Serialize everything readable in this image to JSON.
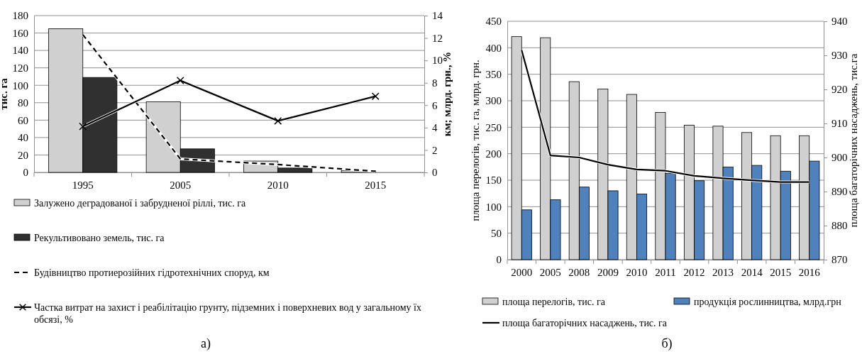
{
  "chart_data": [
    {
      "type": "bar",
      "categories": [
        "1995",
        "2005",
        "2010",
        "2015"
      ],
      "ylabel": "тис. га",
      "y2label": "км; млрд. грн., %",
      "ylim": [
        0,
        180
      ],
      "yticks": [
        0,
        20,
        40,
        60,
        80,
        100,
        120,
        140,
        160,
        180
      ],
      "y2lim": [
        0,
        14
      ],
      "y2ticks": [
        0,
        2,
        4,
        6,
        8,
        10,
        12,
        14
      ],
      "grid": "y",
      "legend": "bottom",
      "annotations": [
        "а)"
      ],
      "series": [
        {
          "name": "Залужено деградованої і забрудненої ріллі, тис. га",
          "color": "#d0d0d0",
          "values": [
            165,
            81,
            13,
            2
          ]
        },
        {
          "name": "Рекультивовано земель, тис. га",
          "color": "#303030",
          "values": [
            109,
            27,
            5,
            null
          ]
        },
        {
          "name": "Будівництво протиерозійних гідротехнічних споруд, км",
          "type": "line",
          "axis": "y2",
          "color": "#000000",
          "line_style": "dashed",
          "marker": "none",
          "values": [
            12.3,
            1.2,
            0.7,
            0.1
          ]
        },
        {
          "name": "Частка витрат на захист і реабілітацію грунту, підземних і поверхневих вод у загальному їх обсязі, %",
          "type": "line",
          "axis": "y2",
          "color": "#000000",
          "line_style": "solid",
          "marker": "cross",
          "values": [
            4.1,
            8.2,
            4.6,
            6.8
          ]
        }
      ]
    },
    {
      "type": "bar",
      "categories": [
        "2000",
        "2005",
        "2008",
        "2009",
        "2010",
        "2011",
        "2012",
        "2013",
        "2014",
        "2015",
        "2016"
      ],
      "ylabel": "площа перелогів, тис. га, млрд. грн.",
      "y2label": "площа багаторічних насаджень, тис.га",
      "ylim": [
        0,
        450
      ],
      "yticks": [
        0,
        50,
        100,
        150,
        200,
        250,
        300,
        350,
        400,
        450
      ],
      "y2lim": [
        870,
        940
      ],
      "y2ticks": [
        870,
        880,
        890,
        900,
        910,
        920,
        930,
        940
      ],
      "grid": "y",
      "legend": "bottom",
      "annotations": [
        "б)"
      ],
      "series": [
        {
          "name": "площа перелогів, тис. га",
          "color": "#d0d0d0",
          "values": [
            421,
            419,
            336,
            322,
            312,
            278,
            254,
            252,
            240,
            234,
            234
          ]
        },
        {
          "name": "продукція рослинництва, млрд.грн",
          "color": "#4f81bd",
          "values": [
            94,
            113,
            137,
            130,
            124,
            163,
            149,
            175,
            178,
            167,
            186
          ]
        },
        {
          "name": "площа багаторічних насаджень, тис. га",
          "type": "line",
          "axis": "y2",
          "color": "#000000",
          "line_style": "solid",
          "marker": "none",
          "values": [
            931.5,
            900.6,
            900,
            897.9,
            896.5,
            896.1,
            894.6,
            893.9,
            893.3,
            892.8,
            892.8
          ]
        }
      ]
    }
  ]
}
